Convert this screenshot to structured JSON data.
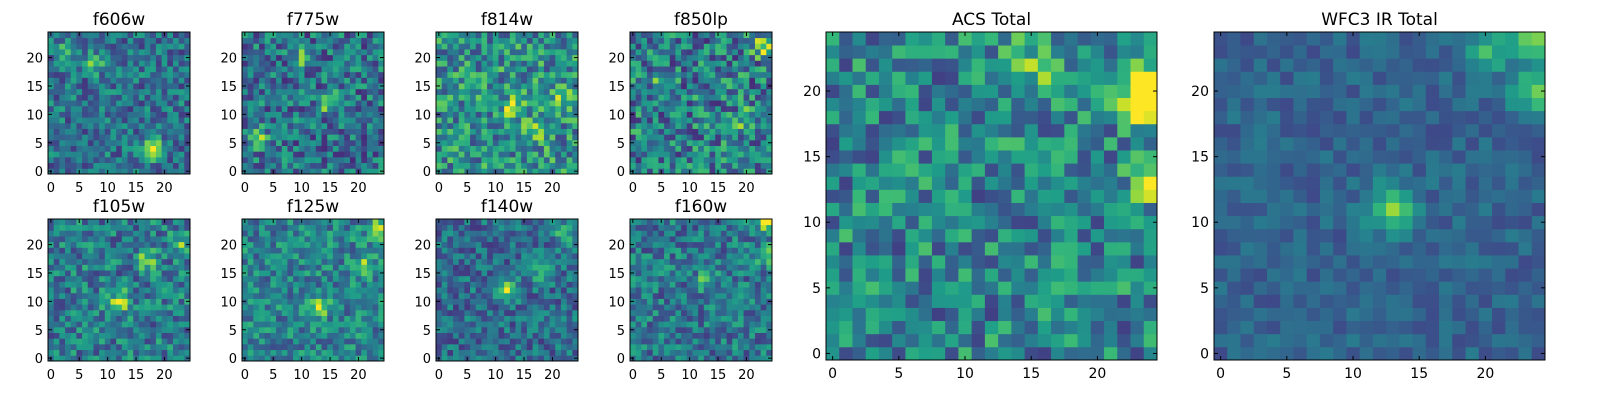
{
  "figure": {
    "colormap": "viridis",
    "colormap_stops": [
      "#440154",
      "#482878",
      "#3e4989",
      "#31688e",
      "#26828e",
      "#1f9e89",
      "#35b779",
      "#6ece58",
      "#b5de2b",
      "#fde725"
    ],
    "frame_color": "#000000",
    "background": "#ffffff"
  },
  "chart_data": [
    {
      "id": "f606w",
      "type": "heatmap",
      "title": "f606w",
      "grid_size": 25,
      "xlim": [
        -0.5,
        24.5
      ],
      "ylim": [
        -0.5,
        24.5
      ],
      "xticks": [
        0,
        5,
        10,
        15,
        20
      ],
      "yticks": [
        0,
        5,
        10,
        15,
        20
      ],
      "seed": 606,
      "base_level": 0.38,
      "noise": 0.22,
      "hotspots": [
        {
          "x": 18,
          "y": 4,
          "amp": 0.55
        },
        {
          "x": 8,
          "y": 19,
          "amp": 0.35
        },
        {
          "x": 3,
          "y": 21,
          "amp": 0.3
        }
      ]
    },
    {
      "id": "f775w",
      "type": "heatmap",
      "title": "f775w",
      "grid_size": 25,
      "xlim": [
        -0.5,
        24.5
      ],
      "ylim": [
        -0.5,
        24.5
      ],
      "xticks": [
        0,
        5,
        10,
        15,
        20
      ],
      "yticks": [
        0,
        5,
        10,
        15,
        20
      ],
      "seed": 775,
      "base_level": 0.38,
      "noise": 0.26,
      "hotspots": [
        {
          "x": 15,
          "y": 12,
          "amp": 0.45
        },
        {
          "x": 2,
          "y": 6,
          "amp": 0.5
        },
        {
          "x": 10,
          "y": 20,
          "amp": 0.3
        }
      ]
    },
    {
      "id": "f814w",
      "type": "heatmap",
      "title": "f814w",
      "grid_size": 25,
      "xlim": [
        -0.5,
        24.5
      ],
      "ylim": [
        -0.5,
        24.5
      ],
      "xticks": [
        0,
        5,
        10,
        15,
        20
      ],
      "yticks": [
        0,
        5,
        10,
        15,
        20
      ],
      "seed": 814,
      "base_level": 0.5,
      "noise": 0.28,
      "hotspots": [
        {
          "x": 13,
          "y": 11,
          "amp": 0.45
        },
        {
          "x": 22,
          "y": 13,
          "amp": 0.3
        },
        {
          "x": 17,
          "y": 7,
          "amp": 0.3
        }
      ]
    },
    {
      "id": "f850lp",
      "type": "heatmap",
      "title": "f850lp",
      "grid_size": 25,
      "xlim": [
        -0.5,
        24.5
      ],
      "ylim": [
        -0.5,
        24.5
      ],
      "xticks": [
        0,
        5,
        10,
        15,
        20
      ],
      "yticks": [
        0,
        5,
        10,
        15,
        20
      ],
      "seed": 850,
      "base_level": 0.42,
      "noise": 0.3,
      "hotspots": [
        {
          "x": 23,
          "y": 22,
          "amp": 0.5
        },
        {
          "x": 20,
          "y": 9,
          "amp": 0.4
        },
        {
          "x": 5,
          "y": 15,
          "amp": 0.3
        }
      ]
    },
    {
      "id": "f105w",
      "type": "heatmap",
      "title": "f105w",
      "grid_size": 25,
      "xlim": [
        -0.5,
        24.5
      ],
      "ylim": [
        -0.5,
        24.5
      ],
      "xticks": [
        0,
        5,
        10,
        15,
        20
      ],
      "yticks": [
        0,
        5,
        10,
        15,
        20
      ],
      "seed": 105,
      "base_level": 0.42,
      "noise": 0.24,
      "hotspots": [
        {
          "x": 12,
          "y": 10,
          "amp": 0.5
        },
        {
          "x": 17,
          "y": 17,
          "amp": 0.4
        },
        {
          "x": 23,
          "y": 20,
          "amp": 0.3
        }
      ]
    },
    {
      "id": "f125w",
      "type": "heatmap",
      "title": "f125w",
      "grid_size": 25,
      "xlim": [
        -0.5,
        24.5
      ],
      "ylim": [
        -0.5,
        24.5
      ],
      "xticks": [
        0,
        5,
        10,
        15,
        20
      ],
      "yticks": [
        0,
        5,
        10,
        15,
        20
      ],
      "seed": 125,
      "base_level": 0.45,
      "noise": 0.22,
      "hotspots": [
        {
          "x": 13,
          "y": 9,
          "amp": 0.5
        },
        {
          "x": 21,
          "y": 16,
          "amp": 0.4
        },
        {
          "x": 24,
          "y": 23,
          "amp": 0.45
        }
      ]
    },
    {
      "id": "f140w",
      "type": "heatmap",
      "title": "f140w",
      "grid_size": 25,
      "xlim": [
        -0.5,
        24.5
      ],
      "ylim": [
        -0.5,
        24.5
      ],
      "xticks": [
        0,
        5,
        10,
        15,
        20
      ],
      "yticks": [
        0,
        5,
        10,
        15,
        20
      ],
      "seed": 140,
      "base_level": 0.36,
      "noise": 0.2,
      "hotspots": [
        {
          "x": 12,
          "y": 12,
          "amp": 0.45
        },
        {
          "x": 22,
          "y": 22,
          "amp": 0.35
        },
        {
          "x": 18,
          "y": 15,
          "amp": 0.3
        }
      ]
    },
    {
      "id": "f160w",
      "type": "heatmap",
      "title": "f160w",
      "grid_size": 25,
      "xlim": [
        -0.5,
        24.5
      ],
      "ylim": [
        -0.5,
        24.5
      ],
      "xticks": [
        0,
        5,
        10,
        15,
        20
      ],
      "yticks": [
        0,
        5,
        10,
        15,
        20
      ],
      "seed": 160,
      "base_level": 0.4,
      "noise": 0.22,
      "hotspots": [
        {
          "x": 24,
          "y": 24,
          "amp": 0.55
        },
        {
          "x": 24,
          "y": 18,
          "amp": 0.45
        },
        {
          "x": 13,
          "y": 14,
          "amp": 0.3
        }
      ]
    },
    {
      "id": "acs-total",
      "type": "heatmap",
      "title": "ACS Total",
      "grid_size": 25,
      "xlim": [
        -0.5,
        24.5
      ],
      "ylim": [
        -0.5,
        24.5
      ],
      "xticks": [
        0,
        5,
        10,
        15,
        20
      ],
      "yticks": [
        0,
        5,
        10,
        15,
        20
      ],
      "seed": 1001,
      "base_level": 0.45,
      "noise": 0.26,
      "hotspots": [
        {
          "x": 24,
          "y": 21,
          "amp": 0.5
        },
        {
          "x": 23,
          "y": 19,
          "amp": 0.45
        },
        {
          "x": 24,
          "y": 13,
          "amp": 0.4
        },
        {
          "x": 15,
          "y": 22,
          "amp": 0.35
        }
      ]
    },
    {
      "id": "wfc3-ir-total",
      "type": "heatmap",
      "title": "WFC3 IR Total",
      "grid_size": 25,
      "xlim": [
        -0.5,
        24.5
      ],
      "ylim": [
        -0.5,
        24.5
      ],
      "xticks": [
        0,
        5,
        10,
        15,
        20
      ],
      "yticks": [
        0,
        5,
        10,
        15,
        20
      ],
      "seed": 2002,
      "base_level": 0.32,
      "noise": 0.1,
      "hotspots": [
        {
          "x": 13,
          "y": 11,
          "amp": 0.5
        },
        {
          "x": 24,
          "y": 20,
          "amp": 0.5
        },
        {
          "x": 24,
          "y": 24,
          "amp": 0.5
        },
        {
          "x": 20,
          "y": 23,
          "amp": 0.35
        }
      ]
    }
  ]
}
